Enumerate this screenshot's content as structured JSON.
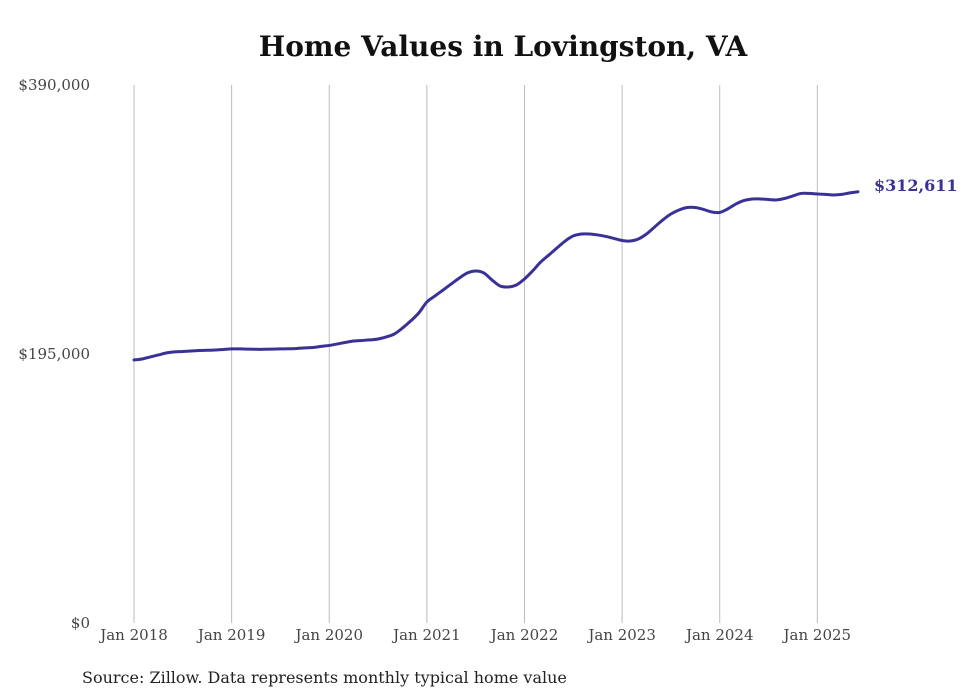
{
  "chart_data": {
    "type": "line",
    "title": "Home Values in Lovingston, VA",
    "source": "Source: Zillow. Data represents monthly typical home value",
    "xlabel": "",
    "ylabel": "",
    "ylim": [
      0,
      390000
    ],
    "y_ticks": [
      0,
      195000,
      390000
    ],
    "y_tick_labels": [
      "$0",
      "$195,000",
      "$390,000"
    ],
    "x_tick_labels": [
      "Jan 2018",
      "Jan 2019",
      "Jan 2020",
      "Jan 2021",
      "Jan 2022",
      "Jan 2023",
      "Jan 2024",
      "Jan 2025"
    ],
    "grid": "vertical",
    "x_start": "Jan 2018",
    "x_frequency": "monthly",
    "end_label": "$312,611",
    "line_color": "#3a3196",
    "series": [
      {
        "name": "Typical home value",
        "values": [
          190700,
          191400,
          192900,
          194300,
          195800,
          196500,
          196800,
          197200,
          197500,
          197700,
          197900,
          198300,
          198700,
          198700,
          198500,
          198400,
          198400,
          198500,
          198700,
          198800,
          199000,
          199400,
          199700,
          200500,
          201200,
          202300,
          203400,
          204400,
          204800,
          205200,
          205900,
          207400,
          209500,
          213800,
          218900,
          224700,
          232700,
          237100,
          241400,
          245800,
          250100,
          253800,
          255200,
          253800,
          248700,
          244300,
          243600,
          245000,
          249400,
          255200,
          261700,
          266800,
          271900,
          276900,
          280600,
          282000,
          282000,
          281300,
          280200,
          278800,
          277300,
          276900,
          278400,
          282000,
          287100,
          292200,
          296500,
          299400,
          301200,
          301200,
          299800,
          298000,
          297600,
          300200,
          303800,
          306300,
          307400,
          307400,
          307000,
          306700,
          307800,
          309600,
          311400,
          311400,
          311000,
          310700,
          310300,
          310700,
          311800,
          312611
        ]
      }
    ]
  }
}
